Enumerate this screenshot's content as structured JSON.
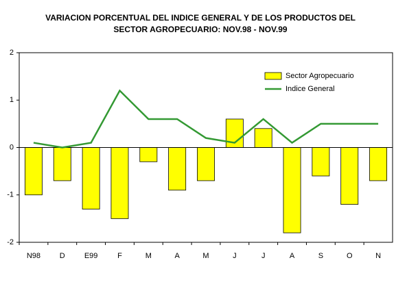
{
  "chart_data": {
    "type": "bar",
    "title": [
      "VARIACION PORCENTUAL DEL INDICE GENERAL Y DE LOS PRODUCTOS DEL",
      "SECTOR AGROPECUARIO: NOV.98 - NOV.99"
    ],
    "categories": [
      "N98",
      "D",
      "E99",
      "F",
      "M",
      "A",
      "M",
      "J",
      "J",
      "A",
      "S",
      "O",
      "N"
    ],
    "series": [
      {
        "name": "Sector Agropecuario",
        "type": "bar",
        "color": "#ffff00",
        "values": [
          -1.0,
          -0.7,
          -1.3,
          -1.5,
          -0.3,
          -0.9,
          -0.7,
          0.6,
          0.4,
          -1.8,
          -0.6,
          -1.2,
          -0.7
        ]
      },
      {
        "name": "Indice General",
        "type": "line",
        "color": "#339933",
        "values": [
          0.1,
          0.0,
          0.1,
          1.2,
          0.6,
          0.6,
          0.2,
          0.1,
          0.6,
          0.1,
          0.5,
          0.5,
          0.5
        ]
      }
    ],
    "ylim": [
      -2,
      2
    ],
    "yticks": [
      -2,
      -1,
      0,
      1,
      2
    ],
    "grid": false,
    "legend": "top-right"
  }
}
